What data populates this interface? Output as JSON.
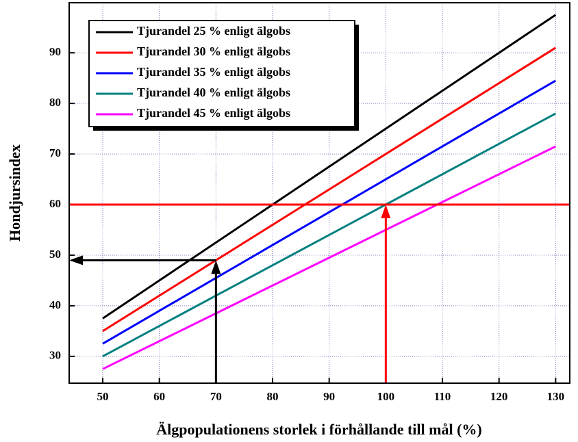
{
  "chart_data": {
    "type": "line",
    "x_label": "Älgpopulationens storlek i förhållande till mål (%)",
    "y_label": "Hondjursindex",
    "x": [
      50,
      130
    ],
    "series": [
      {
        "name": "Tjurandel 25 % enligt älgobs",
        "color": "#000000",
        "values": [
          37.5,
          97.5
        ]
      },
      {
        "name": "Tjurandel 30 % enligt älgobs",
        "color": "#ff0000",
        "values": [
          35,
          91
        ]
      },
      {
        "name": "Tjurandel 35 % enligt älgobs",
        "color": "#0000ff",
        "values": [
          32.5,
          84.5
        ]
      },
      {
        "name": "Tjurandel 40 % enligt älgobs",
        "color": "#008080",
        "values": [
          30,
          78
        ]
      },
      {
        "name": "Tjurandel 45 % enligt älgobs",
        "color": "#ff00ff",
        "values": [
          27.5,
          71.5
        ]
      }
    ],
    "hline": {
      "y": 60,
      "color": "#ff0000"
    },
    "arrows": [
      {
        "x": 100,
        "y": 60,
        "color": "#ff0000",
        "to_y_axis": false
      },
      {
        "x": 70,
        "y": 49,
        "color": "#000000",
        "to_y_axis": true
      }
    ],
    "xlim": [
      44.07,
      132.5
    ],
    "ylim": [
      24.7,
      99.9
    ],
    "xticks": [
      50,
      60,
      70,
      80,
      90,
      100,
      110,
      120,
      130
    ],
    "yticks": [
      30,
      40,
      50,
      60,
      70,
      80,
      90
    ],
    "grid": true,
    "grid_color": "#8080c0",
    "legend": "upper-left"
  }
}
